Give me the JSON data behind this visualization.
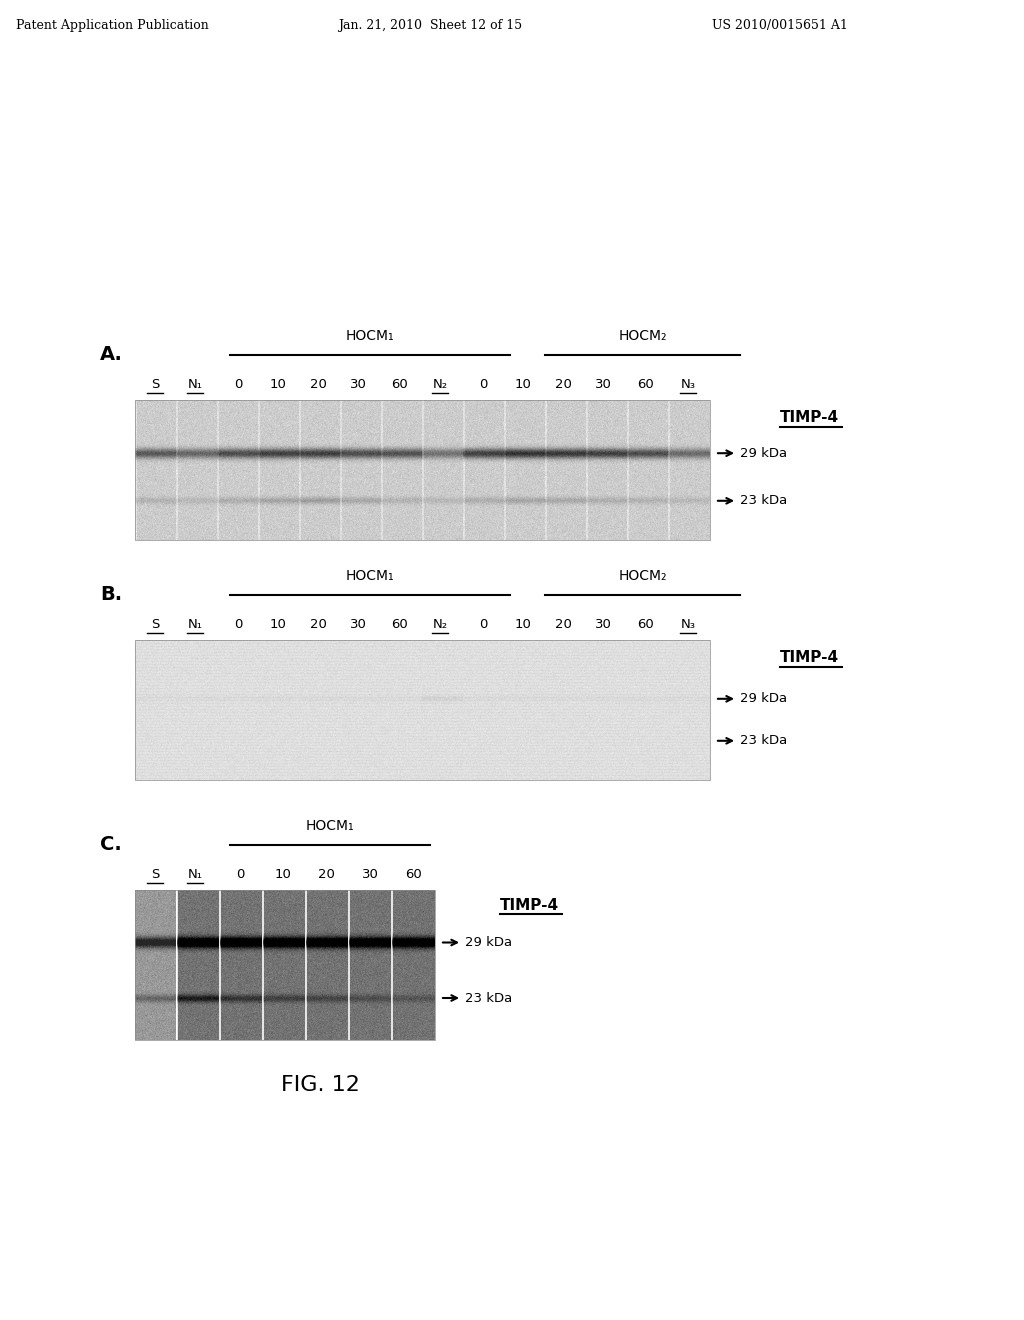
{
  "header_left": "Patent Application Publication",
  "header_mid": "Jan. 21, 2010  Sheet 12 of 15",
  "header_right": "US 2010/0015651 A1",
  "fig_label": "FIG. 12",
  "panel_A": {
    "label": "A.",
    "hocm1_label": "HOCM₁",
    "hocm2_label": "HOCM₂",
    "lane_labels": [
      "S",
      "N₁",
      "0",
      "10",
      "20",
      "30",
      "60",
      "N₂",
      "0",
      "10",
      "20",
      "30",
      "60",
      "N₃"
    ],
    "underlined": [
      "S",
      "N₁",
      "N₂",
      "N₃"
    ],
    "timp4_label": "TIMP-4",
    "band1_label": "29 kDa",
    "band2_label": "23 kDa"
  },
  "panel_B": {
    "label": "B.",
    "hocm1_label": "HOCM₁",
    "hocm2_label": "HOCM₂",
    "lane_labels": [
      "S",
      "N₁",
      "0",
      "10",
      "20",
      "30",
      "60",
      "N₂",
      "0",
      "10",
      "20",
      "30",
      "60",
      "N₃"
    ],
    "underlined": [
      "S",
      "N₁",
      "N₂",
      "N₃"
    ],
    "timp4_label": "TIMP-4",
    "band1_label": "29 kDa",
    "band2_label": "23 kDa"
  },
  "panel_C": {
    "label": "C.",
    "hocm1_label": "HOCM₁",
    "lane_labels": [
      "S",
      "N₁",
      "0",
      "10",
      "20",
      "30",
      "60"
    ],
    "underlined": [
      "S",
      "N₁"
    ],
    "timp4_label": "TIMP-4",
    "band1_label": "29 kDa",
    "band2_label": "23 kDa"
  },
  "bg_color": "#ffffff",
  "text_color": "#000000"
}
